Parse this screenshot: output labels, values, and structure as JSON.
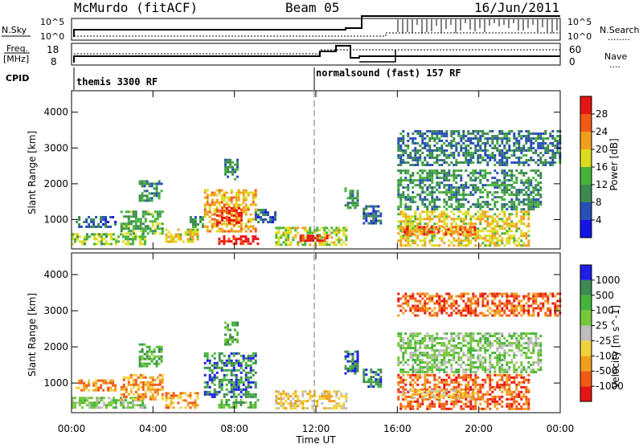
{
  "header": {
    "title": "McMurdo (fitACF)",
    "beam": "Beam 05",
    "date": "16/Jun/2011"
  },
  "sky_panel": {
    "left_label": "N.Sky",
    "left_ticks": [
      "10^5",
      "10^0"
    ],
    "right_label": "N.Search",
    "right_ticks": [
      "10^5",
      "10^0"
    ],
    "right_marker": "........"
  },
  "freq_panel": {
    "left_label_top": "Freq.",
    "left_label_bottom": "[MHz]",
    "left_ticks": [
      "18",
      "8"
    ],
    "right_label": "Nave",
    "right_marker": "....",
    "right_ticks": [
      "60",
      "0"
    ],
    "cpid_label": "CPID",
    "cpid_segments": [
      {
        "label": "themis 3300 RF",
        "start_hour": 0
      },
      {
        "label": "normalsound (fast) 157 RF",
        "start_hour": 12
      }
    ]
  },
  "time_axis": {
    "label": "Time UT",
    "ticks": [
      "00:00",
      "04:00",
      "08:00",
      "12:00",
      "16:00",
      "20:00",
      "00:00"
    ],
    "tick_hours": [
      0,
      4,
      8,
      12,
      16,
      20,
      24
    ]
  },
  "colors": {
    "power_scale": [
      "#1414e6",
      "#2850b4",
      "#3c8a50",
      "#46b43c",
      "#dcdc1e",
      "#f0a01e",
      "#f05a14",
      "#e61414"
    ],
    "velocity_scale": [
      "#1e1ee6",
      "#3c8a50",
      "#46b43c",
      "#78c83c",
      "#bebebe",
      "#f0d23c",
      "#f0a01e",
      "#f05a14",
      "#e61414"
    ]
  },
  "chart_data": [
    {
      "type": "heatmap",
      "name": "power_panel",
      "ylabel": "Slant Range [km]",
      "xlabel": "",
      "yticks": [
        "1000",
        "2000",
        "3000",
        "4000"
      ],
      "ylim": [
        180,
        4600
      ],
      "xlim": [
        0,
        24
      ],
      "colorbar": {
        "label": "Power [dB]",
        "ticks": [
          "4",
          "8",
          "12",
          "16",
          "20",
          "24",
          "28"
        ],
        "range": [
          0,
          30
        ]
      },
      "regions": [
        {
          "t0": 0.0,
          "t1": 3.6,
          "r0": 300,
          "r1": 620,
          "level": 14
        },
        {
          "t0": 0.2,
          "t1": 2.2,
          "r0": 800,
          "r1": 1100,
          "level": 6
        },
        {
          "t0": 2.4,
          "t1": 4.5,
          "r0": 580,
          "r1": 1250,
          "level": 12
        },
        {
          "t0": 3.3,
          "t1": 4.4,
          "r0": 1500,
          "r1": 2100,
          "level": 10
        },
        {
          "t0": 4.6,
          "t1": 6.2,
          "r0": 350,
          "r1": 750,
          "level": 18
        },
        {
          "t0": 5.8,
          "t1": 6.4,
          "r0": 800,
          "r1": 1100,
          "level": 10
        },
        {
          "t0": 6.5,
          "t1": 9.0,
          "r0": 650,
          "r1": 1850,
          "level": 20
        },
        {
          "t0": 7.1,
          "t1": 8.4,
          "r0": 850,
          "r1": 1350,
          "level": 27
        },
        {
          "t0": 7.2,
          "t1": 9.1,
          "r0": 330,
          "r1": 560,
          "level": 28
        },
        {
          "t0": 7.5,
          "t1": 8.2,
          "r0": 2100,
          "r1": 2700,
          "level": 10
        },
        {
          "t0": 9.0,
          "t1": 10.0,
          "r0": 900,
          "r1": 1300,
          "level": 7
        },
        {
          "t0": 10.0,
          "t1": 13.5,
          "r0": 300,
          "r1": 800,
          "level": 16
        },
        {
          "t0": 11.2,
          "t1": 12.6,
          "r0": 420,
          "r1": 580,
          "level": 28
        },
        {
          "t0": 13.4,
          "t1": 14.1,
          "r0": 1300,
          "r1": 1900,
          "level": 10
        },
        {
          "t0": 14.3,
          "t1": 15.2,
          "r0": 900,
          "r1": 1400,
          "level": 7
        },
        {
          "t0": 16.0,
          "t1": 22.5,
          "r0": 300,
          "r1": 1250,
          "level": 18
        },
        {
          "t0": 16.2,
          "t1": 19.8,
          "r0": 600,
          "r1": 820,
          "level": 24
        },
        {
          "t0": 16.0,
          "t1": 24.0,
          "r0": 2500,
          "r1": 3500,
          "level": 8
        },
        {
          "t0": 16.0,
          "t1": 23.0,
          "r0": 1300,
          "r1": 2400,
          "level": 10
        }
      ]
    },
    {
      "type": "heatmap",
      "name": "velocity_panel",
      "ylabel": "Slant Range [km]",
      "xlabel": "Time UT",
      "yticks": [
        "1000",
        "2000",
        "3000",
        "4000"
      ],
      "ylim": [
        180,
        4600
      ],
      "xlim": [
        0,
        24
      ],
      "colorbar": {
        "label": "Velocity [m s^-1]",
        "ticks": [
          "1000",
          "500",
          "100",
          "25",
          "-25",
          "-100",
          "-500",
          "-1000"
        ]
      },
      "regions": [
        {
          "t0": 0.0,
          "t1": 3.6,
          "r0": 300,
          "r1": 620,
          "level": 3
        },
        {
          "t0": 0.2,
          "t1": 2.2,
          "r0": 800,
          "r1": 1100,
          "level": 6
        },
        {
          "t0": 2.4,
          "t1": 4.5,
          "r0": 580,
          "r1": 1250,
          "level": 6
        },
        {
          "t0": 3.3,
          "t1": 4.4,
          "r0": 1500,
          "r1": 2100,
          "level": 2
        },
        {
          "t0": 4.6,
          "t1": 6.2,
          "r0": 350,
          "r1": 750,
          "level": 6
        },
        {
          "t0": 6.5,
          "t1": 9.0,
          "r0": 650,
          "r1": 1850,
          "level": 1
        },
        {
          "t0": 7.2,
          "t1": 9.1,
          "r0": 330,
          "r1": 560,
          "level": 2
        },
        {
          "t0": 7.5,
          "t1": 8.2,
          "r0": 2100,
          "r1": 2700,
          "level": 2
        },
        {
          "t0": 10.0,
          "t1": 13.5,
          "r0": 300,
          "r1": 800,
          "level": 5
        },
        {
          "t0": 13.4,
          "t1": 14.1,
          "r0": 1300,
          "r1": 1900,
          "level": 1
        },
        {
          "t0": 14.3,
          "t1": 15.2,
          "r0": 900,
          "r1": 1400,
          "level": 1
        },
        {
          "t0": 16.0,
          "t1": 22.5,
          "r0": 300,
          "r1": 1250,
          "level": 7
        },
        {
          "t0": 16.2,
          "t1": 19.8,
          "r0": 600,
          "r1": 820,
          "level": 5
        },
        {
          "t0": 16.0,
          "t1": 24.0,
          "r0": 2900,
          "r1": 3500,
          "level": 7
        },
        {
          "t0": 16.0,
          "t1": 23.0,
          "r0": 1300,
          "r1": 2400,
          "level": 3
        }
      ]
    }
  ]
}
